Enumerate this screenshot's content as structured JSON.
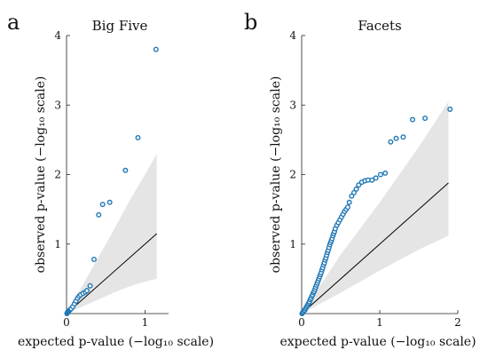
{
  "chart_data": [
    {
      "type": "scatter",
      "panel_label": "a",
      "title": "Big Five",
      "xlabel": "expected p-value (−log₁₀ scale)",
      "ylabel": "observed p-value (−log₁₀ scale)",
      "xlim": [
        0,
        1.3
      ],
      "ylim": [
        0,
        4
      ],
      "xticks": [
        0,
        1
      ],
      "yticks": [
        1,
        2,
        3,
        4
      ],
      "grid": false,
      "point_color": "#1f77b4",
      "band_color": "#e5e5e5",
      "line_color": "#000000",
      "reference_line": {
        "x": [
          0,
          1.15
        ],
        "y": [
          0,
          1.15
        ]
      },
      "confidence_band": {
        "x": [
          0,
          0.2,
          0.4,
          0.6,
          0.8,
          1.0,
          1.15
        ],
        "lower": [
          0,
          0.1,
          0.2,
          0.3,
          0.39,
          0.46,
          0.5
        ],
        "upper": [
          0,
          0.4,
          0.8,
          1.2,
          1.62,
          2.0,
          2.3
        ]
      },
      "series": [
        {
          "x": [
            0.005,
            0.01,
            0.015,
            0.02,
            0.03,
            0.04,
            0.05,
            0.06,
            0.08,
            0.1,
            0.12,
            0.14,
            0.16,
            0.18,
            0.21,
            0.24,
            0.26,
            0.3,
            0.35,
            0.41,
            0.46,
            0.55,
            0.75,
            0.91,
            1.14
          ],
          "y": [
            0.0,
            0.01,
            0.02,
            0.03,
            0.04,
            0.05,
            0.06,
            0.07,
            0.1,
            0.14,
            0.18,
            0.22,
            0.25,
            0.27,
            0.29,
            0.31,
            0.33,
            0.4,
            0.78,
            1.42,
            1.57,
            1.6,
            2.06,
            2.53,
            3.8
          ]
        }
      ]
    },
    {
      "type": "scatter",
      "panel_label": "b",
      "title": "Facets",
      "xlabel": "expected p-value (−log₁₀ scale)",
      "ylabel": "observed p-value (−log₁₀ scale)",
      "xlim": [
        0,
        2.0
      ],
      "ylim": [
        0,
        4
      ],
      "xticks": [
        0,
        1,
        2
      ],
      "yticks": [
        1,
        2,
        3,
        4
      ],
      "grid": false,
      "point_color": "#1f77b4",
      "band_color": "#e5e5e5",
      "line_color": "#000000",
      "reference_line": {
        "x": [
          0,
          1.88
        ],
        "y": [
          0,
          1.88
        ]
      },
      "confidence_band": {
        "x": [
          0,
          0.5,
          1.0,
          1.5,
          1.88
        ],
        "lower": [
          0,
          0.3,
          0.62,
          0.92,
          1.12
        ],
        "upper": [
          0,
          0.85,
          1.6,
          2.4,
          3.05
        ]
      },
      "series": [
        {
          "x": [
            0.005,
            0.01,
            0.02,
            0.03,
            0.04,
            0.05,
            0.06,
            0.07,
            0.08,
            0.09,
            0.1,
            0.11,
            0.12,
            0.13,
            0.14,
            0.15,
            0.16,
            0.17,
            0.18,
            0.19,
            0.2,
            0.21,
            0.22,
            0.23,
            0.24,
            0.25,
            0.26,
            0.27,
            0.28,
            0.29,
            0.3,
            0.31,
            0.32,
            0.33,
            0.34,
            0.35,
            0.36,
            0.37,
            0.38,
            0.39,
            0.4,
            0.41,
            0.42,
            0.43,
            0.45,
            0.47,
            0.49,
            0.51,
            0.53,
            0.55,
            0.57,
            0.59,
            0.61,
            0.64,
            0.67,
            0.7,
            0.73,
            0.77,
            0.81,
            0.85,
            0.9,
            0.95,
            1.01,
            1.07,
            1.14,
            1.21,
            1.3,
            1.42,
            1.58,
            1.9
          ],
          "y": [
            0.0,
            0.01,
            0.02,
            0.04,
            0.05,
            0.07,
            0.09,
            0.11,
            0.13,
            0.15,
            0.17,
            0.2,
            0.22,
            0.25,
            0.27,
            0.3,
            0.32,
            0.35,
            0.38,
            0.41,
            0.44,
            0.47,
            0.5,
            0.53,
            0.56,
            0.59,
            0.63,
            0.66,
            0.7,
            0.73,
            0.77,
            0.8,
            0.84,
            0.88,
            0.91,
            0.95,
            0.99,
            1.02,
            1.05,
            1.08,
            1.12,
            1.15,
            1.18,
            1.22,
            1.27,
            1.31,
            1.35,
            1.39,
            1.43,
            1.47,
            1.5,
            1.53,
            1.6,
            1.69,
            1.74,
            1.79,
            1.85,
            1.89,
            1.91,
            1.92,
            1.92,
            1.95,
            2.0,
            2.02,
            2.47,
            2.52,
            2.54,
            2.79,
            2.81,
            2.94
          ]
        }
      ]
    }
  ]
}
